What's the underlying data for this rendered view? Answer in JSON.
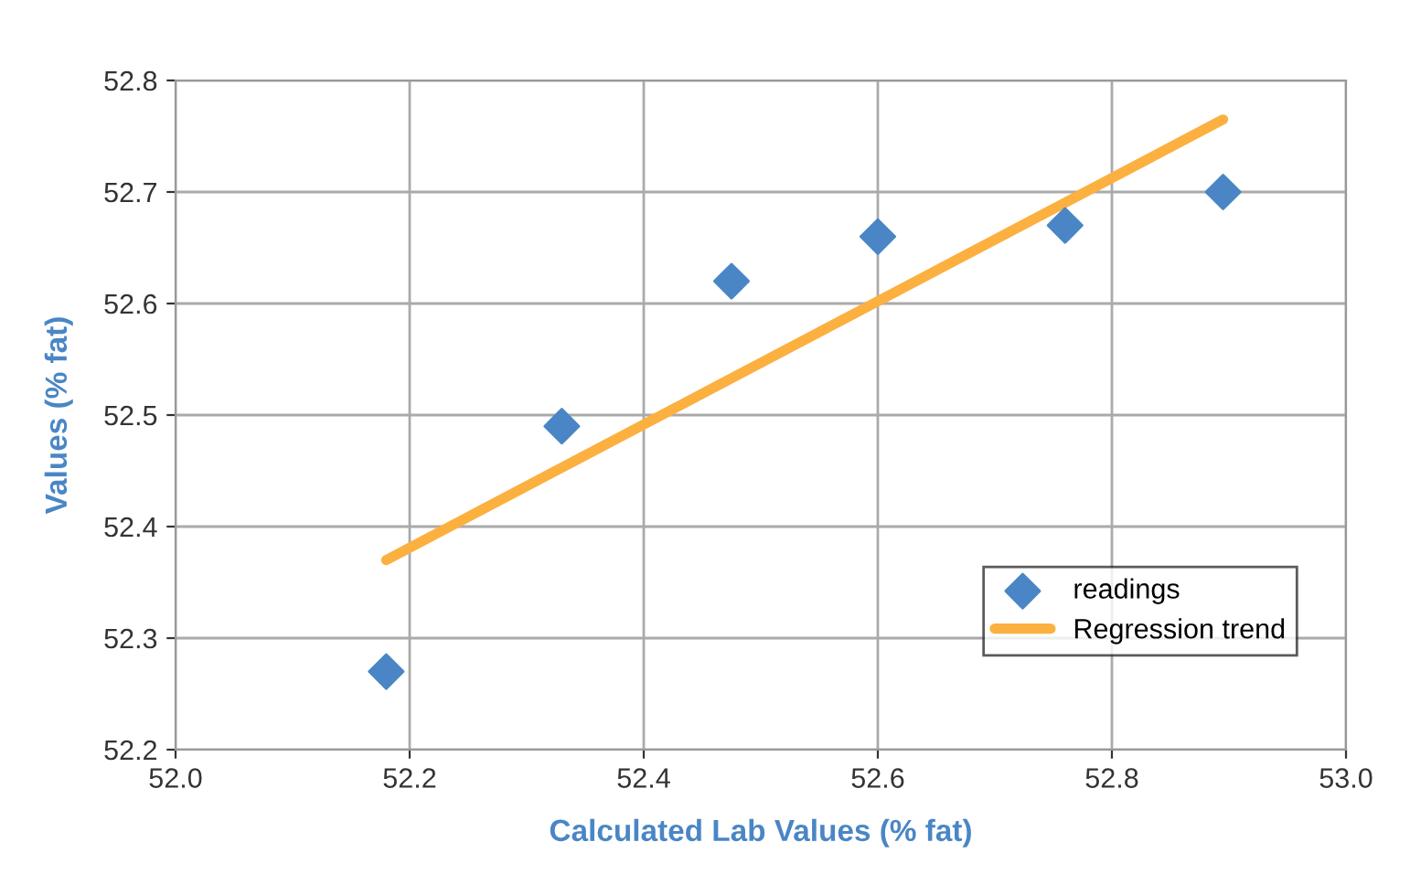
{
  "chart_data": {
    "type": "scatter",
    "xlabel": "Calculated Lab Values (% fat)",
    "ylabel": "Values (% fat)",
    "series": [
      {
        "name": "readings",
        "color": "#4a86c5",
        "marker": "diamond",
        "x": [
          52.18,
          52.33,
          52.475,
          52.6,
          52.76,
          52.895
        ],
        "values": [
          52.27,
          52.49,
          52.62,
          52.66,
          52.67,
          52.7
        ]
      },
      {
        "name": "Regression trend",
        "type": "line",
        "color": "#fbb040",
        "line_style": "solid",
        "x": [
          52.18,
          52.895
        ],
        "values": [
          52.37,
          52.765
        ]
      }
    ],
    "xlim": [
      52.0,
      53.0
    ],
    "xticks": [
      {
        "value": 52.0,
        "label": "52.0"
      },
      52.2,
      52.4,
      52.6,
      52.8,
      {
        "value": 53.0,
        "label": "53.0"
      }
    ],
    "ylim": [
      52.2,
      52.8
    ],
    "yticks": [
      52.2,
      52.3,
      52.4,
      52.5,
      52.6,
      52.7,
      52.8
    ],
    "grid": true,
    "legend": "bottom right"
  }
}
